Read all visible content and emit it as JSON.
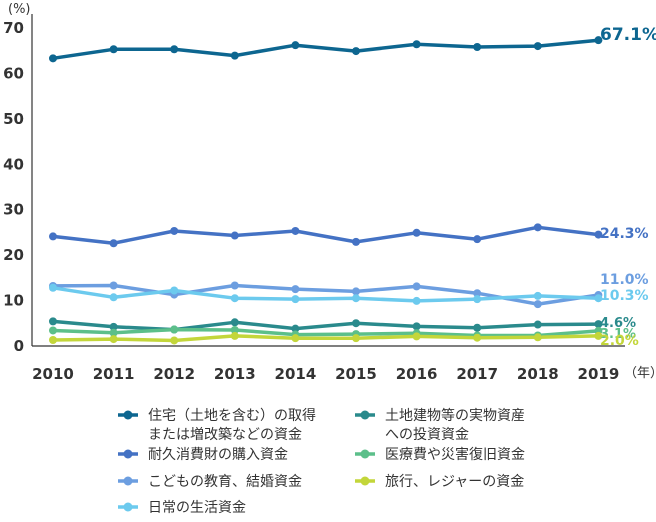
{
  "chart_data": {
    "type": "line",
    "y_unit": "(%)",
    "x_unit": "（年）",
    "x": [
      2010,
      2011,
      2012,
      2013,
      2014,
      2015,
      2016,
      2017,
      2018,
      2019
    ],
    "ylim": [
      0,
      70
    ],
    "yticks": [
      0,
      10,
      20,
      30,
      40,
      50,
      60,
      70
    ],
    "grid": false,
    "legend_position": "bottom",
    "series": [
      {
        "name": "住宅（土地を含む）の取得または増改築などの資金",
        "legend_lines": [
          "住宅（土地を含む）の取得",
          "または増改築などの資金"
        ],
        "color": "#0d6690",
        "values": [
          63.1,
          65.1,
          65.1,
          63.7,
          66.0,
          64.7,
          66.2,
          65.6,
          65.8,
          67.1
        ],
        "end_label": "67.1%"
      },
      {
        "name": "土地建物等の実物資産への投資資金",
        "legend_lines": [
          "土地建物等の実物資産",
          "への投資資金"
        ],
        "color": "#2a8a8c",
        "values": [
          5.2,
          4.0,
          3.4,
          5.0,
          3.6,
          4.8,
          4.1,
          3.8,
          4.5,
          4.6
        ],
        "end_label": "4.6%"
      },
      {
        "name": "耐久消費財の購入資金",
        "legend_lines": [
          "耐久消費財の購入資金"
        ],
        "color": "#4472c4",
        "values": [
          23.9,
          22.4,
          25.1,
          24.1,
          25.1,
          22.7,
          24.7,
          23.3,
          25.9,
          24.3
        ],
        "end_label": "24.3%"
      },
      {
        "name": "医療費や災害復旧資金",
        "legend_lines": [
          "医療費や災害復旧資金"
        ],
        "color": "#5cbf8a",
        "values": [
          3.2,
          2.7,
          3.4,
          3.3,
          2.3,
          2.4,
          2.6,
          2.1,
          2.1,
          3.1
        ],
        "end_label": "3.1%"
      },
      {
        "name": "こどもの教育、結婚資金",
        "legend_lines": [
          "こどもの教育、結婚資金"
        ],
        "color": "#6c9ee0",
        "values": [
          13.0,
          13.1,
          11.1,
          13.1,
          12.3,
          11.8,
          12.9,
          11.4,
          9.0,
          11.0
        ],
        "end_label": "11.0%"
      },
      {
        "name": "旅行、レジャーの資金",
        "legend_lines": [
          "旅行、レジャーの資金"
        ],
        "color": "#c3d63a",
        "values": [
          1.1,
          1.3,
          1.0,
          2.0,
          1.5,
          1.5,
          1.9,
          1.6,
          1.7,
          2.0
        ],
        "end_label": "2.0%"
      },
      {
        "name": "日常の生活資金",
        "legend_lines": [
          "日常の生活資金"
        ],
        "color": "#6ccaee",
        "values": [
          12.6,
          10.5,
          12.0,
          10.3,
          10.1,
          10.3,
          9.7,
          10.1,
          10.8,
          10.3
        ],
        "end_label": "10.3%"
      }
    ]
  }
}
